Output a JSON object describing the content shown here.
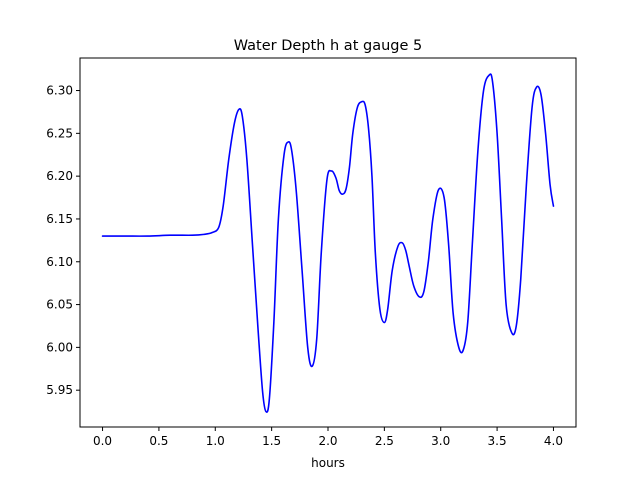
{
  "chart_data": {
    "type": "line",
    "title": "Water Depth h at gauge 5",
    "xlabel": "hours",
    "ylabel": "",
    "xlim": [
      -0.2,
      4.2
    ],
    "ylim": [
      5.907,
      6.338
    ],
    "x_ticks": [
      0.0,
      0.5,
      1.0,
      1.5,
      2.0,
      2.5,
      3.0,
      3.5,
      4.0
    ],
    "x_tick_labels": [
      "0.0",
      "0.5",
      "1.0",
      "1.5",
      "2.0",
      "2.5",
      "3.0",
      "3.5",
      "4.0"
    ],
    "y_ticks": [
      5.95,
      6.0,
      6.05,
      6.1,
      6.15,
      6.2,
      6.25,
      6.3
    ],
    "y_tick_labels": [
      "5.95",
      "6.00",
      "6.05",
      "6.10",
      "6.15",
      "6.20",
      "6.25",
      "6.30"
    ],
    "grid": false,
    "line_color": "#0000ff",
    "series": [
      {
        "x": [
          0.0,
          0.2,
          0.4,
          0.6,
          0.8,
          0.9,
          0.97,
          1.03,
          1.07,
          1.12,
          1.17,
          1.21,
          1.24,
          1.28,
          1.33,
          1.38,
          1.42,
          1.45,
          1.48,
          1.52,
          1.56,
          1.61,
          1.65,
          1.68,
          1.72,
          1.77,
          1.82,
          1.86,
          1.9,
          1.94,
          1.99,
          2.03,
          2.07,
          2.1,
          2.13,
          2.16,
          2.19,
          2.22,
          2.26,
          2.3,
          2.33,
          2.36,
          2.39,
          2.42,
          2.46,
          2.5,
          2.53,
          2.57,
          2.62,
          2.66,
          2.69,
          2.72,
          2.76,
          2.81,
          2.85,
          2.89,
          2.93,
          2.98,
          3.03,
          3.07,
          3.11,
          3.16,
          3.2,
          3.24,
          3.28,
          3.33,
          3.38,
          3.43,
          3.46,
          3.5,
          3.54,
          3.58,
          3.63,
          3.67,
          3.71,
          3.76,
          3.81,
          3.85,
          3.89,
          3.93,
          3.97,
          4.0
        ],
        "y": [
          6.13,
          6.13,
          6.13,
          6.131,
          6.131,
          6.132,
          6.134,
          6.14,
          6.165,
          6.22,
          6.262,
          6.278,
          6.27,
          6.22,
          6.12,
          6.02,
          5.948,
          5.925,
          5.94,
          6.03,
          6.15,
          6.225,
          6.24,
          6.228,
          6.18,
          6.09,
          6.0,
          5.978,
          6.01,
          6.11,
          6.195,
          6.206,
          6.198,
          6.183,
          6.179,
          6.185,
          6.21,
          6.25,
          6.28,
          6.287,
          6.283,
          6.255,
          6.2,
          6.11,
          6.045,
          6.029,
          6.045,
          6.09,
          6.118,
          6.122,
          6.113,
          6.095,
          6.072,
          6.059,
          6.065,
          6.1,
          6.15,
          6.184,
          6.175,
          6.12,
          6.04,
          6.0,
          5.997,
          6.03,
          6.12,
          6.23,
          6.3,
          6.318,
          6.31,
          6.25,
          6.15,
          6.05,
          6.017,
          6.025,
          6.08,
          6.19,
          6.28,
          6.304,
          6.295,
          6.25,
          6.19,
          6.165
        ]
      }
    ]
  }
}
